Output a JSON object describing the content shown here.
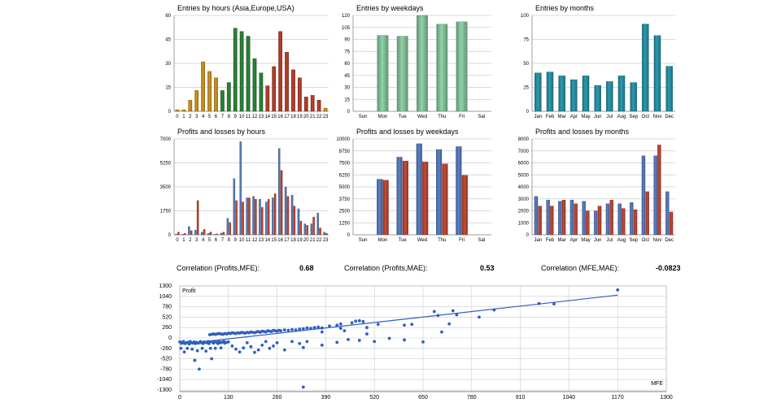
{
  "correlations": [
    {
      "label": "Correlation (Profits,MFE):",
      "value": "0.68"
    },
    {
      "label": "Correlation (Profits,MAE):",
      "value": "0.53"
    },
    {
      "label": "Correlation (MFE,MAE):",
      "value": "-0.0823"
    }
  ],
  "colors": {
    "asia": "#d69a1f",
    "europe": "#2e8b3a",
    "usa": "#c0432b",
    "green_bar": "#8fd4a8",
    "teal_bar": "#2b9bb0",
    "profit_bar": "#5b82c8",
    "loss_bar": "#c94a35",
    "scatter": "#2f5fbf",
    "grid": "#cccccc"
  },
  "chart_data": [
    {
      "id": "entries-hours",
      "type": "bar",
      "title": "Entries by hours (Asia,Europe,USA)",
      "categories": [
        "0",
        "1",
        "2",
        "3",
        "4",
        "5",
        "6",
        "7",
        "8",
        "9",
        "10",
        "11",
        "12",
        "13",
        "14",
        "15",
        "16",
        "17",
        "18",
        "19",
        "20",
        "21",
        "22",
        "23"
      ],
      "values": [
        1,
        1,
        7,
        13,
        31,
        25,
        21,
        13,
        18,
        52,
        50,
        47,
        33,
        24,
        16,
        28,
        50,
        37,
        26,
        21,
        9,
        10,
        7,
        2
      ],
      "bar_colors": [
        "asia",
        "asia",
        "asia",
        "asia",
        "asia",
        "asia",
        "asia",
        "europe",
        "europe",
        "europe",
        "europe",
        "europe",
        "europe",
        "europe",
        "usa",
        "usa",
        "usa",
        "usa",
        "usa",
        "usa",
        "usa",
        "usa",
        "usa",
        "asia"
      ],
      "ylim": [
        0,
        60
      ],
      "yticks": [
        "0",
        "15",
        "30",
        "45",
        "60"
      ]
    },
    {
      "id": "entries-weekdays",
      "type": "bar",
      "title": "Entries by weekdays",
      "categories": [
        "Sun",
        "Mon",
        "Tue",
        "Wed",
        "Thu",
        "Fri",
        "Sat"
      ],
      "values": [
        0,
        95,
        94,
        120,
        109,
        112,
        0
      ],
      "ylim": [
        0,
        120
      ],
      "yticks": [
        "0",
        "15",
        "30",
        "45",
        "60",
        "75",
        "90",
        "105",
        "120"
      ]
    },
    {
      "id": "entries-months",
      "type": "bar",
      "title": "Entries by months",
      "categories": [
        "Jan",
        "Feb",
        "Mar",
        "Apr",
        "May",
        "Jun",
        "Jul",
        "Aug",
        "Sep",
        "Oct",
        "Nov",
        "Dec"
      ],
      "values": [
        40,
        41,
        37,
        33,
        37,
        27,
        31,
        37,
        30,
        91,
        79,
        47
      ],
      "ylim": [
        0,
        100
      ],
      "yticks": [
        "0",
        "25",
        "50",
        "75",
        "100"
      ]
    },
    {
      "id": "pl-hours",
      "type": "bar",
      "title": "Profits and losses by hours",
      "categories": [
        "0",
        "1",
        "2",
        "3",
        "4",
        "5",
        "6",
        "7",
        "8",
        "9",
        "10",
        "11",
        "12",
        "13",
        "14",
        "15",
        "16",
        "17",
        "18",
        "19",
        "20",
        "21",
        "22",
        "23"
      ],
      "series": [
        {
          "values": [
            50,
            40,
            600,
            350,
            200,
            100,
            40,
            120,
            1200,
            4100,
            6800,
            2700,
            2800,
            2600,
            2400,
            2700,
            6300,
            3500,
            2900,
            1900,
            800,
            800,
            1600,
            200
          ]
        },
        {
          "values": [
            200,
            100,
            300,
            2500,
            400,
            200,
            60,
            200,
            900,
            2500,
            2400,
            2700,
            2600,
            2000,
            2600,
            3000,
            4700,
            2800,
            2100,
            1000,
            700,
            1300,
            500,
            100
          ]
        }
      ],
      "ylim": [
        0,
        7000
      ],
      "yticks": [
        "0",
        "1750",
        "3500",
        "5250",
        "7000"
      ]
    },
    {
      "id": "pl-weekdays",
      "type": "bar",
      "title": "Profits and losses by weekdays",
      "categories": [
        "Sun",
        "Mon",
        "Tue",
        "Wed",
        "Thu",
        "Fri",
        "Sat"
      ],
      "series": [
        {
          "values": [
            0,
            5800,
            8100,
            9500,
            8900,
            9200,
            0
          ]
        },
        {
          "values": [
            0,
            5700,
            7700,
            7600,
            7400,
            6200,
            0
          ]
        }
      ],
      "ylim": [
        0,
        10000
      ],
      "yticks": [
        "0",
        "1250",
        "2500",
        "3750",
        "5000",
        "6250",
        "7500",
        "8750",
        "10000"
      ]
    },
    {
      "id": "pl-months",
      "type": "bar",
      "title": "Profits and losses by months",
      "categories": [
        "Jan",
        "Feb",
        "Mar",
        "Apr",
        "May",
        "Jun",
        "Jul",
        "Aug",
        "Sep",
        "Oct",
        "Nov",
        "Dec"
      ],
      "series": [
        {
          "values": [
            3200,
            2900,
            2800,
            2900,
            2800,
            2000,
            2600,
            2600,
            2700,
            6600,
            6600,
            3600
          ]
        },
        {
          "values": [
            2400,
            2400,
            2900,
            2600,
            2000,
            2400,
            2900,
            2200,
            2100,
            3600,
            7500,
            1900
          ]
        }
      ],
      "ylim": [
        0,
        8000
      ],
      "yticks": [
        "0",
        "1000",
        "2000",
        "3000",
        "4000",
        "5000",
        "6000",
        "7000",
        "8000"
      ]
    },
    {
      "id": "scatter-mfe",
      "type": "scatter",
      "xlabel": "MFE",
      "ylabel": "Profit",
      "xlim": [
        0,
        1300
      ],
      "ylim": [
        -1300,
        1300
      ],
      "xticks": [
        "0",
        "130",
        "260",
        "390",
        "520",
        "650",
        "780",
        "910",
        "1040",
        "1170",
        "1300"
      ],
      "yticks": [
        "1300",
        "1040",
        "780",
        "520",
        "260",
        "0",
        "-260",
        "-520",
        "-780",
        "-1040",
        "-1300"
      ],
      "trend": [
        [
          0,
          -160
        ],
        [
          1170,
          1070
        ]
      ],
      "points": [
        [
          0,
          -100
        ],
        [
          3,
          -260
        ],
        [
          5,
          -110
        ],
        [
          8,
          -130
        ],
        [
          10,
          -90
        ],
        [
          12,
          -350
        ],
        [
          14,
          -140
        ],
        [
          18,
          -120
        ],
        [
          20,
          -260
        ],
        [
          22,
          -110
        ],
        [
          25,
          -150
        ],
        [
          28,
          -90
        ],
        [
          30,
          -120
        ],
        [
          33,
          -280
        ],
        [
          35,
          -130
        ],
        [
          38,
          -100
        ],
        [
          40,
          -560
        ],
        [
          42,
          -140
        ],
        [
          45,
          -110
        ],
        [
          47,
          -320
        ],
        [
          50,
          -130
        ],
        [
          52,
          -780
        ],
        [
          55,
          -90
        ],
        [
          58,
          -120
        ],
        [
          60,
          -260
        ],
        [
          62,
          -140
        ],
        [
          65,
          -100
        ],
        [
          68,
          -110
        ],
        [
          70,
          -330
        ],
        [
          72,
          -120
        ],
        [
          75,
          -90
        ],
        [
          78,
          -140
        ],
        [
          80,
          -100
        ],
        [
          82,
          -260
        ],
        [
          85,
          -520
        ],
        [
          88,
          -110
        ],
        [
          90,
          -130
        ],
        [
          92,
          -90
        ],
        [
          95,
          -260
        ],
        [
          98,
          -110
        ],
        [
          100,
          -120
        ],
        [
          102,
          -140
        ],
        [
          105,
          -90
        ],
        [
          108,
          -120
        ],
        [
          110,
          -250
        ],
        [
          112,
          -110
        ],
        [
          115,
          -100
        ],
        [
          118,
          -90
        ],
        [
          120,
          -130
        ],
        [
          125,
          -110
        ],
        [
          80,
          80
        ],
        [
          85,
          90
        ],
        [
          90,
          100
        ],
        [
          95,
          90
        ],
        [
          100,
          100
        ],
        [
          105,
          110
        ],
        [
          110,
          100
        ],
        [
          115,
          90
        ],
        [
          120,
          110
        ],
        [
          125,
          100
        ],
        [
          130,
          120
        ],
        [
          135,
          110
        ],
        [
          140,
          130
        ],
        [
          145,
          120
        ],
        [
          150,
          110
        ],
        [
          155,
          130
        ],
        [
          160,
          120
        ],
        [
          165,
          140
        ],
        [
          170,
          130
        ],
        [
          175,
          120
        ],
        [
          180,
          140
        ],
        [
          185,
          130
        ],
        [
          190,
          150
        ],
        [
          195,
          140
        ],
        [
          200,
          130
        ],
        [
          205,
          150
        ],
        [
          210,
          160
        ],
        [
          215,
          140
        ],
        [
          220,
          170
        ],
        [
          225,
          160
        ],
        [
          230,
          150
        ],
        [
          235,
          180
        ],
        [
          240,
          170
        ],
        [
          245,
          160
        ],
        [
          250,
          190
        ],
        [
          255,
          180
        ],
        [
          260,
          170
        ],
        [
          265,
          190
        ],
        [
          270,
          180
        ],
        [
          280,
          200
        ],
        [
          290,
          190
        ],
        [
          300,
          210
        ],
        [
          310,
          200
        ],
        [
          320,
          220
        ],
        [
          330,
          230
        ],
        [
          340,
          250
        ],
        [
          350,
          240
        ],
        [
          360,
          260
        ],
        [
          370,
          270
        ],
        [
          380,
          250
        ],
        [
          130,
          -100
        ],
        [
          140,
          -200
        ],
        [
          150,
          -280
        ],
        [
          160,
          -350
        ],
        [
          170,
          -250
        ],
        [
          180,
          -120
        ],
        [
          190,
          -220
        ],
        [
          200,
          -360
        ],
        [
          210,
          -300
        ],
        [
          220,
          -180
        ],
        [
          230,
          -90
        ],
        [
          240,
          -260
        ],
        [
          250,
          -200
        ],
        [
          260,
          -120
        ],
        [
          280,
          -300
        ],
        [
          300,
          -90
        ],
        [
          320,
          -140
        ],
        [
          330,
          -240
        ],
        [
          340,
          -90
        ],
        [
          380,
          -180
        ],
        [
          420,
          -110
        ],
        [
          450,
          -40
        ],
        [
          480,
          -60
        ],
        [
          500,
          100
        ],
        [
          520,
          -90
        ],
        [
          560,
          -10
        ],
        [
          600,
          -50
        ],
        [
          650,
          -100
        ],
        [
          700,
          150
        ],
        [
          720,
          350
        ],
        [
          420,
          320
        ],
        [
          430,
          240
        ],
        [
          440,
          180
        ],
        [
          460,
          380
        ],
        [
          470,
          420
        ],
        [
          480,
          430
        ],
        [
          490,
          410
        ],
        [
          500,
          260
        ],
        [
          530,
          340
        ],
        [
          600,
          320
        ],
        [
          620,
          340
        ],
        [
          680,
          660
        ],
        [
          690,
          560
        ],
        [
          730,
          680
        ],
        [
          740,
          580
        ],
        [
          800,
          520
        ],
        [
          840,
          700
        ],
        [
          960,
          860
        ],
        [
          1000,
          850
        ],
        [
          1170,
          1200
        ],
        [
          330,
          -1230
        ],
        [
          400,
          300
        ],
        [
          430,
          350
        ],
        [
          380,
          150
        ]
      ]
    }
  ]
}
